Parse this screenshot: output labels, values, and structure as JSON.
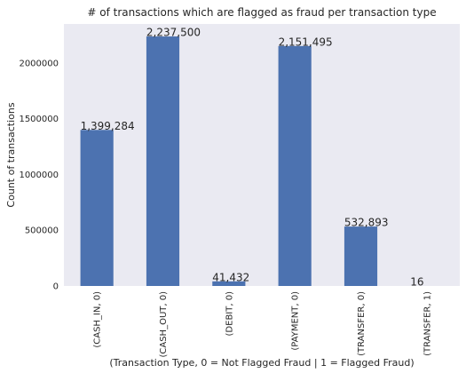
{
  "chart_data": {
    "type": "bar",
    "title": "# of transactions which are flagged as fraud per transaction type",
    "xlabel": "(Transaction Type, 0 = Not Flagged Fraud | 1 = Flagged Fraud)",
    "ylabel": "Count of transactions",
    "categories": [
      "(CASH_IN, 0)",
      "(CASH_OUT, 0)",
      "(DEBIT, 0)",
      "(PAYMENT, 0)",
      "(TRANSFER, 0)",
      "(TRANSFER, 1)"
    ],
    "values": [
      1399284,
      2237500,
      41432,
      2151495,
      532893,
      16
    ],
    "data_labels": [
      "1,399,284",
      "2,237,500",
      "41,432",
      "2,151,495",
      "532,893",
      "16"
    ],
    "yticks": [
      0,
      500000,
      1000000,
      1500000,
      2000000
    ],
    "ytick_labels": [
      "0",
      "500000",
      "1000000",
      "1500000",
      "2000000"
    ],
    "ylim": [
      0,
      2349375
    ],
    "grid": false,
    "legend": "none",
    "colors": {
      "bar": "#4c72b0",
      "plot_background": "#eaeaf2",
      "text": "#262626"
    }
  }
}
